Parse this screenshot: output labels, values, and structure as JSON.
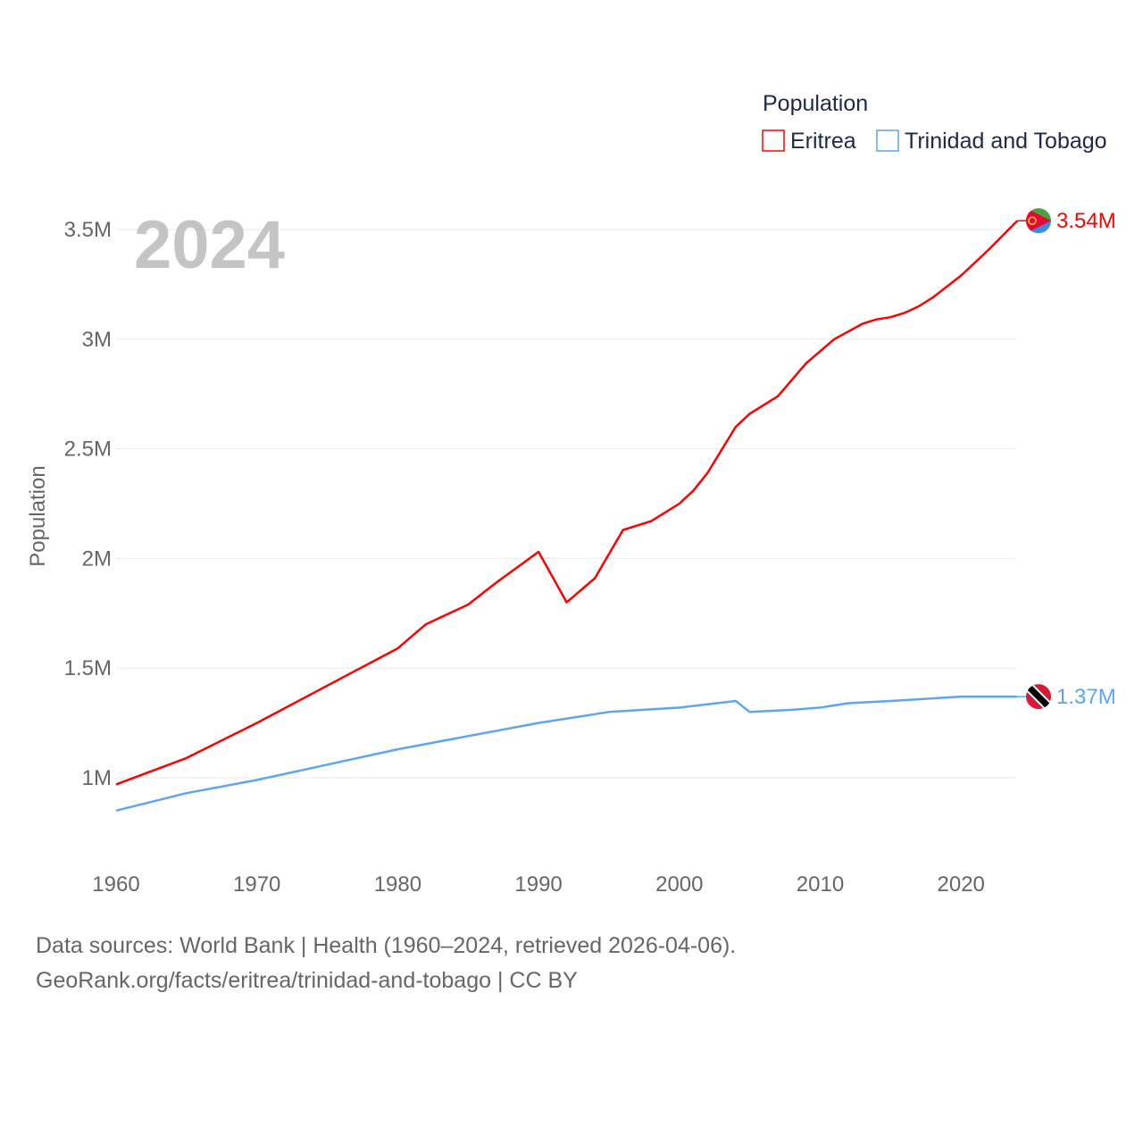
{
  "chart_data": {
    "type": "line",
    "year_watermark": "2024",
    "ylabel": "Population",
    "legend_title": "Population",
    "legend_placement": "top-right",
    "xlim": [
      1960,
      2024
    ],
    "ylim": [
      0.7,
      3.6
    ],
    "x_ticks": [
      "1960",
      "1970",
      "1980",
      "1990",
      "2000",
      "2010",
      "2020"
    ],
    "y_ticks": [
      {
        "v": 1,
        "label": "1M"
      },
      {
        "v": 1.5,
        "label": "1.5M"
      },
      {
        "v": 2,
        "label": "2M"
      },
      {
        "v": 2.5,
        "label": "2.5M"
      },
      {
        "v": 3,
        "label": "3M"
      },
      {
        "v": 3.5,
        "label": "3.5M"
      }
    ],
    "grid": true,
    "units": "millions",
    "series": [
      {
        "name": "Eritrea",
        "color": "#ff0000",
        "end_label": "3.54M",
        "flag": "eritrea-flag",
        "x": [
          1960,
          1965,
          1970,
          1975,
          1980,
          1982,
          1985,
          1987,
          1990,
          1992,
          1994,
          1995,
          1996,
          1998,
          2000,
          2001,
          2002,
          2004,
          2005,
          2007,
          2009,
          2011,
          2013,
          2014,
          2015,
          2016,
          2017,
          2018,
          2020,
          2022,
          2024
        ],
        "values": [
          0.97,
          1.09,
          1.25,
          1.42,
          1.59,
          1.7,
          1.79,
          1.89,
          2.03,
          1.8,
          1.91,
          2.02,
          2.13,
          2.17,
          2.25,
          2.31,
          2.39,
          2.6,
          2.66,
          2.74,
          2.89,
          3.0,
          3.07,
          3.09,
          3.1,
          3.12,
          3.15,
          3.19,
          3.29,
          3.41,
          3.54
        ]
      },
      {
        "name": "Trinidad and Tobago",
        "color": "#5ea5ee",
        "end_label": "1.37M",
        "flag": "trinidad-and-tobago-flag",
        "x": [
          1960,
          1965,
          1970,
          1975,
          1980,
          1985,
          1990,
          1995,
          2000,
          2004,
          2005,
          2008,
          2010,
          2012,
          2015,
          2020,
          2024
        ],
        "values": [
          0.85,
          0.93,
          0.99,
          1.06,
          1.13,
          1.19,
          1.25,
          1.3,
          1.32,
          1.35,
          1.3,
          1.31,
          1.32,
          1.34,
          1.35,
          1.37,
          1.37
        ]
      }
    ]
  },
  "footer": {
    "line1": "Data sources: World Bank | Health (1960–2024, retrieved 2026-04-06).",
    "line2": "GeoRank.org/facts/eritrea/trinidad-and-tobago | CC BY"
  }
}
